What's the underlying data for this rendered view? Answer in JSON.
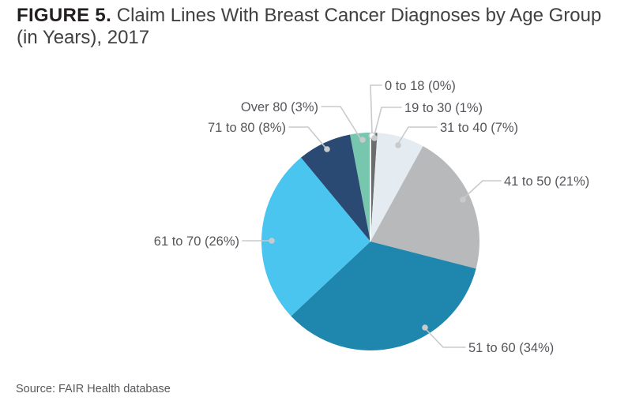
{
  "header": {
    "figure_label": "FIGURE 5.",
    "title_rest": "Claim Lines With Breast Cancer Diagnoses by Age Group",
    "title_line2": "(in Years), 2017"
  },
  "footer": {
    "source": "Source: FAIR Health database"
  },
  "chart_data": {
    "type": "pie",
    "title": "FIGURE 5. Claim Lines With Breast Cancer Diagnoses by Age Group (in Years), 2017",
    "source": "Source: FAIR Health database",
    "unit": "percent of claim lines",
    "start_angle": "12-oclock",
    "direction": "clockwise",
    "legend_position": "callout-labels",
    "categories": [
      "0 to 18",
      "19 to 30",
      "31 to 40",
      "41 to 50",
      "51 to 60",
      "61 to 70",
      "71 to 80",
      "Over 80"
    ],
    "values": [
      0,
      1,
      7,
      21,
      34,
      26,
      8,
      3
    ],
    "labels": [
      "0 to 18 (0%)",
      "19 to 30 (1%)",
      "31 to 40 (7%)",
      "41 to 50 (21%)",
      "51 to 60 (34%)",
      "61 to 70 (26%)",
      "71 to 80 (8%)",
      "Over 80 (3%)"
    ],
    "colors": [
      "#ffffff",
      "#6b6c6e",
      "#e4ebf1",
      "#b8b9bb",
      "#1f87ad",
      "#49c5f0",
      "#2b4a73",
      "#77c7ae"
    ],
    "style": {
      "label_color": "#55565a",
      "leader_color": "#c9cacb",
      "background": "#ffffff"
    }
  }
}
